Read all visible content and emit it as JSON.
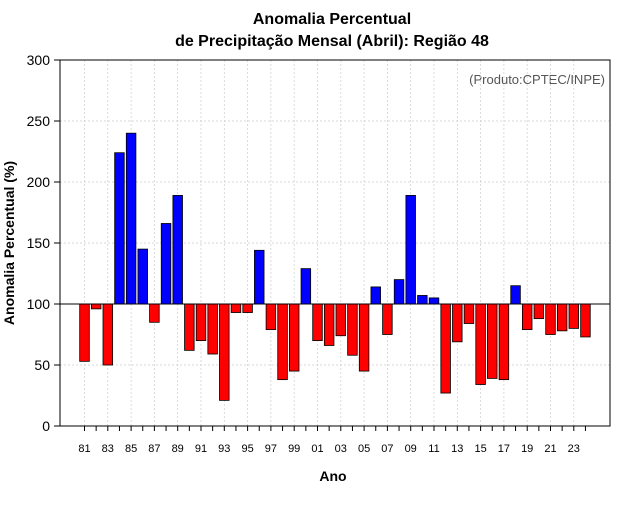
{
  "chart_data": {
    "type": "bar",
    "title": "Anomalia Percentual",
    "subtitle": "de Precipitação Mensal (Abril): Região 48",
    "xlabel": "Ano",
    "ylabel": "Anomalia Percentual (%)",
    "credit": "(Produto:CPTEC/INPE)",
    "ylim": [
      0,
      300
    ],
    "yticks": [
      "0",
      "50",
      "100",
      "150",
      "200",
      "250",
      "300"
    ],
    "baseline": 100,
    "grid": true,
    "colors": {
      "above": "#0000ff",
      "below": "#ff0000",
      "stroke": "#000000"
    },
    "categories": [
      "81",
      "82",
      "83",
      "84",
      "85",
      "86",
      "87",
      "88",
      "89",
      "90",
      "91",
      "92",
      "93",
      "94",
      "95",
      "96",
      "97",
      "98",
      "99",
      "00",
      "01",
      "02",
      "03",
      "04",
      "05",
      "06",
      "07",
      "08",
      "09",
      "10",
      "11",
      "12",
      "13",
      "14",
      "15",
      "16",
      "17",
      "18",
      "19",
      "20",
      "21",
      "22",
      "23",
      "24"
    ],
    "xtick_labels": [
      "81",
      "83",
      "85",
      "87",
      "89",
      "91",
      "93",
      "95",
      "97",
      "99",
      "01",
      "03",
      "05",
      "07",
      "09",
      "11",
      "13",
      "15",
      "17",
      "19",
      "21",
      "23"
    ],
    "values": [
      53,
      96,
      50,
      224,
      240,
      145,
      85,
      166,
      189,
      62,
      70,
      59,
      21,
      93,
      93,
      144,
      79,
      38,
      45,
      129,
      70,
      66,
      74,
      58,
      45,
      114,
      75,
      120,
      189,
      107,
      105,
      27,
      69,
      84,
      34,
      39,
      38,
      115,
      79,
      88,
      75,
      78,
      80,
      73
    ]
  }
}
